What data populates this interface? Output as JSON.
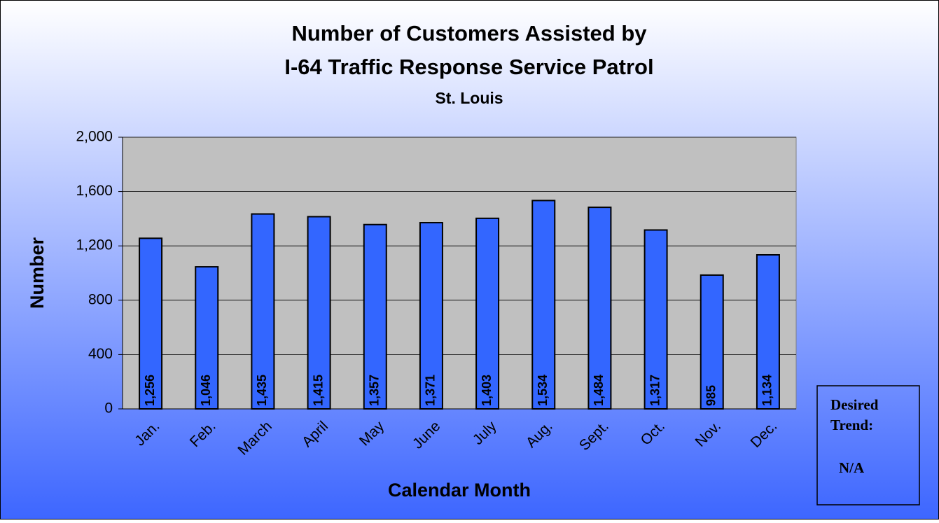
{
  "chart_data": {
    "type": "bar",
    "title": [
      "Number of Customers Assisted by",
      "I-64 Traffic Response Service Patrol"
    ],
    "subtitle": "St. Louis",
    "x_label": "Calendar Month",
    "y_label": "Number",
    "categories": [
      "Jan.",
      "Feb.",
      "March",
      "April",
      "May",
      "June",
      "July",
      "Aug.",
      "Sept.",
      "Oct.",
      "Nov.",
      "Dec."
    ],
    "values": [
      1256,
      1046,
      1435,
      1415,
      1357,
      1371,
      1403,
      1534,
      1484,
      1317,
      985,
      1134
    ],
    "value_labels": [
      "1,256",
      "1,046",
      "1,435",
      "1,415",
      "1,357",
      "1,371",
      "1,403",
      "1,534",
      "1,484",
      "1,317",
      "985",
      "1,134"
    ],
    "color": "#3366ff",
    "ylim": [
      0,
      2000
    ],
    "yticks": [
      0,
      400,
      800,
      {
        "value": 1200,
        "label": "1,200"
      },
      {
        "value": 1600,
        "label": "1,600"
      },
      {
        "value": 2000,
        "label": "2,000"
      }
    ],
    "grid": true,
    "desired_trend": {
      "label": [
        "Desired",
        "Trend:"
      ],
      "value": "N/A"
    }
  }
}
